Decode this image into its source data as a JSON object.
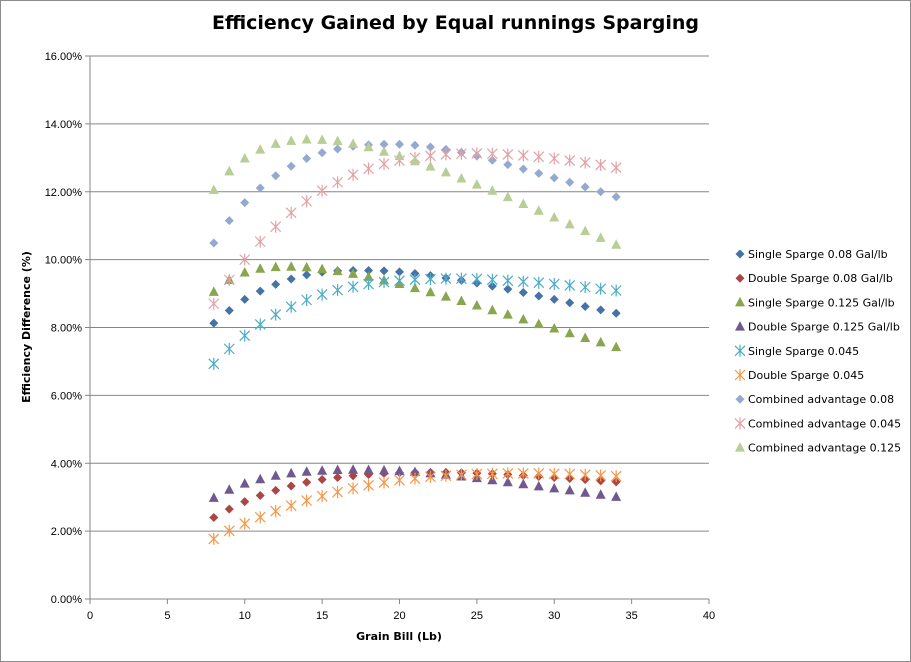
{
  "chart_data": {
    "type": "scatter",
    "title": "Efficiency Gained by Equal runnings Sparging",
    "xlabel": "Grain Bill  (Lb)",
    "ylabel": "Efficiency  Difference  (%)",
    "xlim": [
      0,
      40
    ],
    "ylim": [
      0,
      0.16
    ],
    "x_ticks": [
      0,
      5,
      10,
      15,
      20,
      25,
      30,
      35,
      40
    ],
    "x_tick_labels": [
      "0",
      "5",
      "10",
      "15",
      "20",
      "25",
      "30",
      "35",
      "40"
    ],
    "y_ticks": [
      0,
      0.02,
      0.04,
      0.06,
      0.08,
      0.1,
      0.12,
      0.14,
      0.16
    ],
    "y_tick_labels": [
      "0.00%",
      "2.00%",
      "4.00%",
      "6.00%",
      "8.00%",
      "10.00%",
      "12.00%",
      "14.00%",
      "16.00%"
    ],
    "grid": "horizontal",
    "legend_position": "right",
    "x": [
      8,
      9,
      10,
      11,
      12,
      13,
      14,
      15,
      16,
      17,
      18,
      19,
      20,
      21,
      22,
      23,
      24,
      25,
      26,
      27,
      28,
      29,
      30,
      31,
      32,
      33,
      34
    ],
    "series": [
      {
        "name": "Single Sparge 0.08 Gal/lb",
        "marker": "diamond",
        "color": "#4572a7",
        "values": [
          0.0813,
          0.085,
          0.0883,
          0.0907,
          0.0927,
          0.0943,
          0.0955,
          0.0963,
          0.0967,
          0.0968,
          0.0968,
          0.0967,
          0.0964,
          0.0959,
          0.0953,
          0.0946,
          0.0939,
          0.0931,
          0.0922,
          0.0913,
          0.0903,
          0.0893,
          0.0883,
          0.0873,
          0.0862,
          0.0852,
          0.0842
        ]
      },
      {
        "name": "Double Sparge 0.08 Gal/lb",
        "marker": "diamond",
        "color": "#aa4643",
        "values": [
          0.024,
          0.0265,
          0.0287,
          0.0305,
          0.032,
          0.0333,
          0.0344,
          0.0352,
          0.0358,
          0.0363,
          0.0367,
          0.037,
          0.0372,
          0.0373,
          0.0373,
          0.0373,
          0.0372,
          0.0371,
          0.0369,
          0.0367,
          0.0364,
          0.0361,
          0.0358,
          0.0355,
          0.0352,
          0.0348,
          0.0345
        ]
      },
      {
        "name": "Single Sparge 0.125 Gal/lb",
        "marker": "triangle",
        "color": "#89a54e",
        "values": [
          0.0905,
          0.094,
          0.0962,
          0.0973,
          0.0978,
          0.0979,
          0.0977,
          0.0972,
          0.0966,
          0.0958,
          0.0949,
          0.0939,
          0.0928,
          0.0916,
          0.0904,
          0.0891,
          0.0878,
          0.0865,
          0.0851,
          0.0838,
          0.0824,
          0.081,
          0.0797,
          0.0783,
          0.0769,
          0.0756,
          0.0742
        ]
      },
      {
        "name": "Double Sparge 0.125 Gal/lb",
        "marker": "triangle",
        "color": "#71588f",
        "values": [
          0.0298,
          0.0322,
          0.034,
          0.0353,
          0.0363,
          0.037,
          0.0375,
          0.0378,
          0.038,
          0.0381,
          0.038,
          0.0379,
          0.0377,
          0.0374,
          0.037,
          0.0366,
          0.0361,
          0.0356,
          0.035,
          0.0344,
          0.0338,
          0.0332,
          0.0326,
          0.032,
          0.0313,
          0.0307,
          0.0301
        ]
      },
      {
        "name": "Single Sparge 0.045",
        "marker": "asterisk",
        "color": "#4bacc6",
        "values": [
          0.0693,
          0.0737,
          0.0776,
          0.0809,
          0.0838,
          0.0861,
          0.0881,
          0.0897,
          0.091,
          0.092,
          0.0928,
          0.0934,
          0.0938,
          0.0941,
          0.0943,
          0.0944,
          0.0944,
          0.0943,
          0.0941,
          0.0938,
          0.0935,
          0.0932,
          0.0928,
          0.0924,
          0.0919,
          0.0914,
          0.0909
        ]
      },
      {
        "name": "Double Sparge 0.045",
        "marker": "asterisk",
        "color": "#f79646",
        "values": [
          0.0177,
          0.0201,
          0.0222,
          0.0241,
          0.0259,
          0.0275,
          0.029,
          0.0303,
          0.0315,
          0.0326,
          0.0335,
          0.0343,
          0.035,
          0.0355,
          0.036,
          0.0363,
          0.0366,
          0.0368,
          0.0369,
          0.037,
          0.037,
          0.037,
          0.0369,
          0.0368,
          0.0366,
          0.0364,
          0.0362
        ]
      },
      {
        "name": "Combined advantage 0.08",
        "marker": "diamond",
        "color": "#93a9cf",
        "values": [
          0.1049,
          0.1115,
          0.1168,
          0.1211,
          0.1247,
          0.1275,
          0.1298,
          0.1315,
          0.1326,
          0.1334,
          0.1338,
          0.134,
          0.134,
          0.1337,
          0.1332,
          0.1325,
          0.1316,
          0.1305,
          0.1293,
          0.128,
          0.1267,
          0.1254,
          0.1241,
          0.1228,
          0.1214,
          0.12,
          0.1185
        ]
      },
      {
        "name": "Combined advantage 0.045",
        "marker": "asterisk",
        "color": "#e3a0a4",
        "values": [
          0.087,
          0.094,
          0.1,
          0.1053,
          0.1097,
          0.1138,
          0.1172,
          0.1203,
          0.1228,
          0.125,
          0.1268,
          0.1282,
          0.1292,
          0.13,
          0.1306,
          0.131,
          0.1312,
          0.1313,
          0.1312,
          0.131,
          0.1307,
          0.1303,
          0.1298,
          0.1292,
          0.1286,
          0.1279,
          0.1271
        ]
      },
      {
        "name": "Combined advantage 0.125",
        "marker": "triangle",
        "color": "#b9cd96",
        "values": [
          0.1205,
          0.126,
          0.1298,
          0.1324,
          0.1341,
          0.135,
          0.1354,
          0.1353,
          0.1349,
          0.1341,
          0.1331,
          0.1318,
          0.1305,
          0.129,
          0.1274,
          0.1257,
          0.1239,
          0.1221,
          0.1203,
          0.1184,
          0.1164,
          0.1144,
          0.1124,
          0.1104,
          0.1084,
          0.1064,
          0.1044
        ]
      }
    ]
  }
}
